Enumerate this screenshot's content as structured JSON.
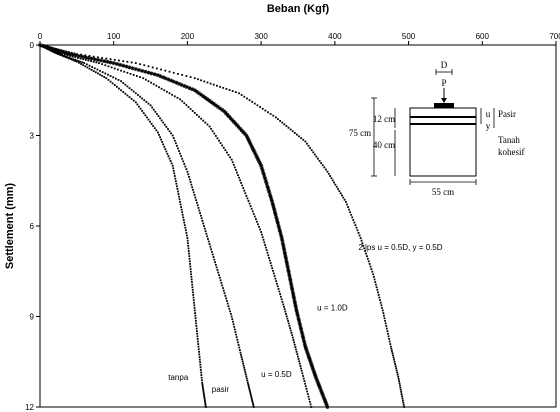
{
  "chart_data": {
    "type": "scatter",
    "xlabel": "Beban (Kgf)",
    "ylabel": "Settlement (mm)",
    "x_axis_position": "top",
    "y_axis_inverted": true,
    "xlim": [
      0,
      700
    ],
    "ylim": [
      0,
      12
    ],
    "xticks": [
      "0",
      "100",
      "200",
      "300",
      "400",
      "500",
      "600",
      "700"
    ],
    "yticks": [
      "0",
      "3",
      "6",
      "9",
      "12"
    ],
    "grid": false,
    "legend": "none",
    "series": [
      {
        "label": "tanpa",
        "marker": "dot",
        "points": [
          [
            0,
            0
          ],
          [
            20,
            0.25
          ],
          [
            50,
            0.55
          ],
          [
            90,
            1.1
          ],
          [
            130,
            1.9
          ],
          [
            160,
            2.9
          ],
          [
            180,
            4.0
          ],
          [
            190,
            5.2
          ],
          [
            200,
            6.4
          ],
          [
            205,
            7.6
          ],
          [
            210,
            8.8
          ],
          [
            215,
            10.0
          ],
          [
            220,
            11.2
          ],
          [
            225,
            12.0
          ]
        ]
      },
      {
        "label": "pasir",
        "marker": "dot",
        "points": [
          [
            0,
            0
          ],
          [
            25,
            0.3
          ],
          [
            60,
            0.6
          ],
          [
            110,
            1.2
          ],
          [
            150,
            2.0
          ],
          [
            180,
            3.0
          ],
          [
            200,
            4.2
          ],
          [
            215,
            5.4
          ],
          [
            230,
            6.6
          ],
          [
            245,
            7.8
          ],
          [
            260,
            9.0
          ],
          [
            272,
            10.2
          ],
          [
            282,
            11.2
          ],
          [
            290,
            12.0
          ]
        ]
      },
      {
        "label": "u = 0.5D",
        "marker": "dot",
        "points": [
          [
            0,
            0
          ],
          [
            30,
            0.3
          ],
          [
            80,
            0.6
          ],
          [
            140,
            1.1
          ],
          [
            190,
            1.8
          ],
          [
            230,
            2.7
          ],
          [
            260,
            3.8
          ],
          [
            280,
            5.0
          ],
          [
            300,
            6.2
          ],
          [
            315,
            7.4
          ],
          [
            330,
            8.6
          ],
          [
            343,
            9.7
          ],
          [
            355,
            10.8
          ],
          [
            368,
            12.0
          ]
        ]
      },
      {
        "label": "u = 1.0D",
        "marker": "star",
        "points": [
          [
            0,
            0
          ],
          [
            40,
            0.3
          ],
          [
            100,
            0.6
          ],
          [
            160,
            1.0
          ],
          [
            210,
            1.5
          ],
          [
            250,
            2.2
          ],
          [
            280,
            3.0
          ],
          [
            300,
            4.0
          ],
          [
            315,
            5.2
          ],
          [
            328,
            6.4
          ],
          [
            338,
            7.6
          ],
          [
            348,
            8.8
          ],
          [
            360,
            10.0
          ],
          [
            374,
            11.0
          ],
          [
            390,
            12.0
          ]
        ]
      },
      {
        "label": "2 lps u = 0.5D, y = 0.5D",
        "marker": "dot",
        "points": [
          [
            0,
            0
          ],
          [
            50,
            0.3
          ],
          [
            130,
            0.6
          ],
          [
            210,
            1.1
          ],
          [
            270,
            1.6
          ],
          [
            320,
            2.4
          ],
          [
            360,
            3.2
          ],
          [
            390,
            4.2
          ],
          [
            415,
            5.2
          ],
          [
            435,
            6.4
          ],
          [
            452,
            7.6
          ],
          [
            465,
            8.8
          ],
          [
            476,
            10.0
          ],
          [
            486,
            11.0
          ],
          [
            494,
            12.0
          ]
        ]
      }
    ],
    "annotations": [
      {
        "text": "tanpa",
        "x": 174,
        "y": 11.1
      },
      {
        "text": "pasir",
        "x": 233,
        "y": 11.5
      },
      {
        "text": "u = 0.5D",
        "x": 300,
        "y": 11.0
      },
      {
        "text": "u = 1.0D",
        "x": 376,
        "y": 8.8
      },
      {
        "text": "2 lps u = 0.5D, y = 0.5D",
        "x": 432,
        "y": 6.8
      }
    ]
  },
  "inset": {
    "labels": {
      "D": "D",
      "P": "P",
      "u": "u",
      "y": "y",
      "pasir": "Pasir",
      "tanah1": "Tanah",
      "tanah2": "kohesif",
      "h_total": "75 cm",
      "h_top": "12 cm",
      "h_bottom": "40 cm",
      "width": "55 cm"
    }
  }
}
